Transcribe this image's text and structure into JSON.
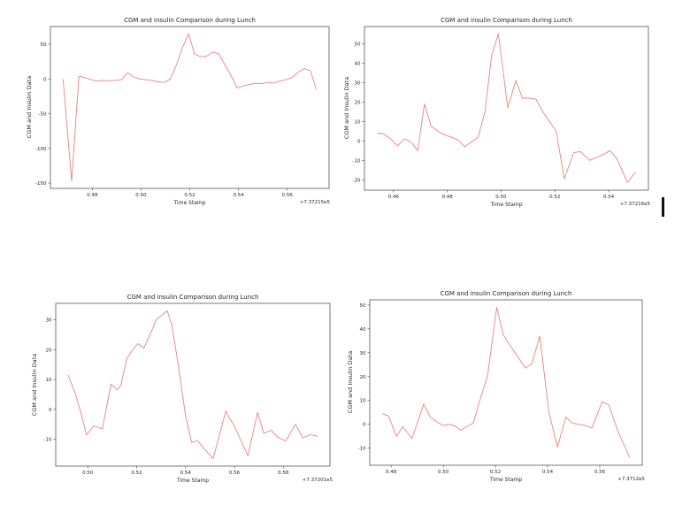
{
  "figure": {
    "background": "#ffffff"
  },
  "chart_data": [
    {
      "type": "line",
      "title": "CGM and insulin Comparison during Lunch",
      "xlabel": "Time Stamp",
      "ylabel": "CGM and Insulin Data",
      "offset_text": "+7.37215e5",
      "line_color": "#f08080",
      "legend": "none",
      "grid": false,
      "xlim": [
        0.4628,
        0.5772
      ],
      "ylim": [
        -157.6,
        75.6
      ],
      "xticks": [
        0.48,
        0.5,
        0.52,
        0.54,
        0.56
      ],
      "xtick_labels": [
        "0.48",
        "0.50",
        "0.52",
        "0.54",
        "0.56"
      ],
      "yticks": [
        50,
        0,
        -50,
        -100,
        -150
      ],
      "ytick_labels": [
        "50",
        "0",
        "-50",
        "-100",
        "-150"
      ],
      "x": [
        0.468,
        0.4715,
        0.4745,
        0.477,
        0.4795,
        0.482,
        0.4845,
        0.487,
        0.4895,
        0.492,
        0.4945,
        0.497,
        0.4995,
        0.502,
        0.5045,
        0.507,
        0.5095,
        0.512,
        0.5145,
        0.517,
        0.5195,
        0.522,
        0.5245,
        0.527,
        0.5295,
        0.532,
        0.5345,
        0.537,
        0.5395,
        0.542,
        0.5445,
        0.547,
        0.5495,
        0.552,
        0.5545,
        0.557,
        0.5595,
        0.562,
        0.5645,
        0.567,
        0.5695,
        0.572
      ],
      "y": [
        0,
        -147,
        4,
        2,
        -1,
        -3,
        -2,
        -2.5,
        -2,
        -1,
        9,
        3,
        0,
        -1,
        -2,
        -4,
        -5,
        0,
        20,
        45,
        65,
        36,
        32,
        33,
        39,
        36,
        20,
        5,
        -13,
        -10,
        -8,
        -6,
        -7,
        -5,
        -6,
        -3,
        -1,
        2,
        10,
        15,
        12,
        -15
      ]
    },
    {
      "type": "line",
      "title": "CGM and insulin Comparison during Lunch",
      "xlabel": "Time Stamp",
      "ylabel": "CGM and Insulin Data",
      "offset_text": "+7.37216e5",
      "line_color": "#f08080",
      "legend": "none",
      "grid": false,
      "xlim": [
        0.4492,
        0.5548
      ],
      "ylim": [
        -25.3,
        58.8
      ],
      "xticks": [
        0.46,
        0.48,
        0.5,
        0.52,
        0.54
      ],
      "xtick_labels": [
        "0.46",
        "0.48",
        "0.50",
        "0.52",
        "0.54"
      ],
      "yticks": [
        50,
        40,
        30,
        20,
        10,
        0,
        -10,
        -20
      ],
      "ytick_labels": [
        "50",
        "40",
        "30",
        "20",
        "10",
        "0",
        "-10",
        "-20"
      ],
      "x": [
        0.454,
        0.4565,
        0.459,
        0.4615,
        0.464,
        0.4665,
        0.469,
        0.4715,
        0.474,
        0.4765,
        0.479,
        0.4815,
        0.484,
        0.4865,
        0.489,
        0.4915,
        0.494,
        0.4965,
        0.499,
        0.5025,
        0.5055,
        0.508,
        0.5105,
        0.513,
        0.5155,
        0.518,
        0.5205,
        0.5235,
        0.527,
        0.5295,
        0.533,
        0.5355,
        0.538,
        0.5405,
        0.543,
        0.547,
        0.55
      ],
      "y": [
        4,
        3.5,
        1,
        -2.5,
        1,
        -0.5,
        -5,
        19,
        7.5,
        5,
        3,
        2,
        0.5,
        -3,
        -0.5,
        2,
        15,
        44,
        55,
        17,
        31,
        22,
        22,
        21.5,
        15,
        10,
        5,
        -19.5,
        -6,
        -5.5,
        -10,
        -8.5,
        -7,
        -5,
        -9,
        -21.5,
        -16
      ]
    },
    {
      "type": "line",
      "title": "CGM and insulin Comparison during Lunch",
      "xlabel": "Time Stamp",
      "ylabel": "CGM and Insulin Data",
      "offset_text": "+7.37201e5",
      "line_color": "#f08080",
      "legend": "none",
      "grid": false,
      "xlim": [
        0.4869,
        0.5991
      ],
      "ylim": [
        -18.975,
        35.475
      ],
      "xticks": [
        0.5,
        0.52,
        0.54,
        0.56,
        0.58
      ],
      "xtick_labels": [
        "0.50",
        "0.52",
        "0.54",
        "0.56",
        "0.58"
      ],
      "yticks": [
        30,
        20,
        10,
        0,
        -10
      ],
      "ytick_labels": [
        "30",
        "20",
        "10",
        "0",
        "-10"
      ],
      "x": [
        0.492,
        0.495,
        0.4975,
        0.4995,
        0.5025,
        0.506,
        0.5095,
        0.512,
        0.5135,
        0.516,
        0.518,
        0.5205,
        0.523,
        0.5255,
        0.528,
        0.5295,
        0.5325,
        0.5345,
        0.537,
        0.54,
        0.5425,
        0.545,
        0.5475,
        0.5513,
        0.5565,
        0.558,
        0.56,
        0.5655,
        0.5695,
        0.572,
        0.575,
        0.578,
        0.581,
        0.585,
        0.588,
        0.591,
        0.594
      ],
      "y": [
        11.5,
        5,
        -2,
        -8.5,
        -5.5,
        -6.5,
        8.5,
        6.5,
        8,
        17,
        19.5,
        22,
        20.5,
        25,
        30,
        31,
        33,
        28,
        15,
        -2,
        -11,
        -10.5,
        -13,
        -16.5,
        -0.5,
        -3,
        -5.5,
        -15.5,
        -1,
        -8,
        -7,
        -9.5,
        -10.5,
        -5,
        -9.5,
        -8.5,
        -9
      ]
    },
    {
      "type": "line",
      "title": "CGM and insulin Comparison during Lunch",
      "xlabel": "Time Stamp",
      "ylabel": "CGM and Insulin Data",
      "offset_text": "+7.3712e5",
      "line_color": "#f08080",
      "legend": "none",
      "grid": false,
      "xlim": [
        0.4718,
        0.5763
      ],
      "ylim": [
        -17.15,
        52.15
      ],
      "xticks": [
        0.48,
        0.5,
        0.52,
        0.54,
        0.56
      ],
      "xtick_labels": [
        "0.48",
        "0.50",
        "0.52",
        "0.54",
        "0.56"
      ],
      "yticks": [
        50,
        40,
        30,
        20,
        10,
        0,
        -10
      ],
      "ytick_labels": [
        "50",
        "40",
        "30",
        "20",
        "10",
        "0",
        "-10"
      ],
      "x": [
        0.4765,
        0.479,
        0.482,
        0.4845,
        0.488,
        0.4925,
        0.495,
        0.4975,
        0.5,
        0.5025,
        0.505,
        0.5065,
        0.509,
        0.5115,
        0.514,
        0.517,
        0.5205,
        0.523,
        0.525,
        0.5275,
        0.53,
        0.5315,
        0.534,
        0.537,
        0.5405,
        0.5438,
        0.547,
        0.5495,
        0.552,
        0.5545,
        0.557,
        0.561,
        0.5635,
        0.567,
        0.5695,
        0.5715
      ],
      "y": [
        4.5,
        3.5,
        -5,
        -1,
        -6,
        8.5,
        3,
        1,
        -0.5,
        0,
        -1,
        -2.5,
        -1,
        0.5,
        10,
        20.5,
        49,
        37.5,
        34,
        30,
        26,
        23.5,
        25.5,
        37,
        5,
        -9.5,
        3,
        0.5,
        0,
        -0.5,
        -1.5,
        9.5,
        8,
        -3,
        -9,
        -14
      ]
    }
  ]
}
